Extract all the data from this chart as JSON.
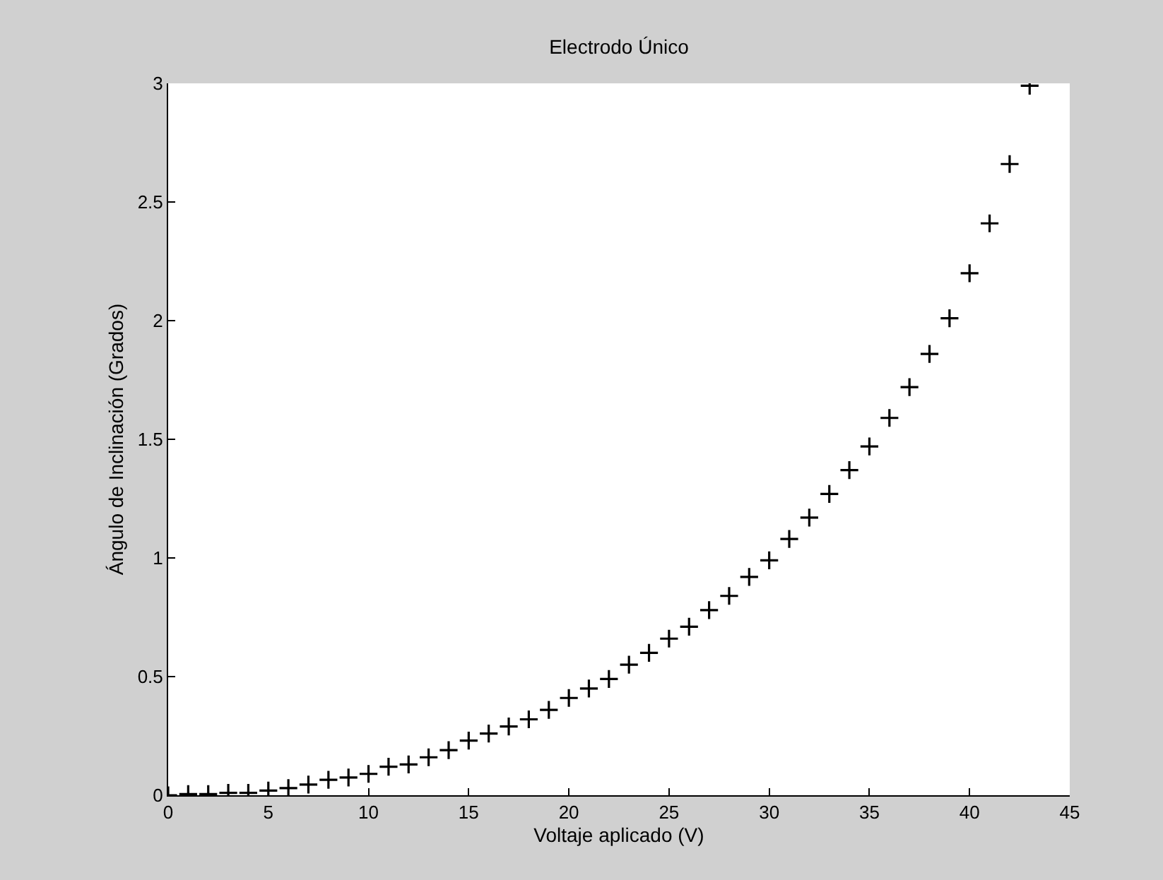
{
  "chart_data": {
    "type": "scatter",
    "title": "Electrodo Único",
    "xlabel": "Voltaje aplicado (V)",
    "ylabel": "Ángulo de Inclinación (Grados)",
    "x": [
      0,
      1,
      2,
      3,
      4,
      5,
      6,
      7,
      8,
      9,
      10,
      11,
      12,
      13,
      14,
      15,
      16,
      17,
      18,
      19,
      20,
      21,
      22,
      23,
      24,
      25,
      26,
      27,
      28,
      29,
      30,
      31,
      32,
      33,
      34,
      35,
      36,
      37,
      38,
      39,
      40,
      41,
      42,
      43
    ],
    "series": [
      {
        "color": "#000000",
        "values": [
          0,
          0.005,
          0.005,
          0.01,
          0.01,
          0.02,
          0.03,
          0.045,
          0.065,
          0.075,
          0.09,
          0.12,
          0.13,
          0.16,
          0.19,
          0.23,
          0.26,
          0.29,
          0.32,
          0.36,
          0.41,
          0.45,
          0.49,
          0.55,
          0.6,
          0.66,
          0.71,
          0.78,
          0.84,
          0.92,
          0.99,
          1.08,
          1.17,
          1.27,
          1.37,
          1.47,
          1.59,
          1.72,
          1.86,
          2.01,
          2.2,
          2.41,
          2.66,
          2.99
        ]
      }
    ],
    "xlim": [
      0,
      45
    ],
    "xticks": [
      0,
      5,
      10,
      15,
      20,
      25,
      30,
      35,
      40,
      45
    ],
    "ylim": [
      0,
      3
    ],
    "yticks": [
      0,
      0.5,
      1,
      1.5,
      2,
      2.5,
      3
    ],
    "marker": "cross"
  }
}
